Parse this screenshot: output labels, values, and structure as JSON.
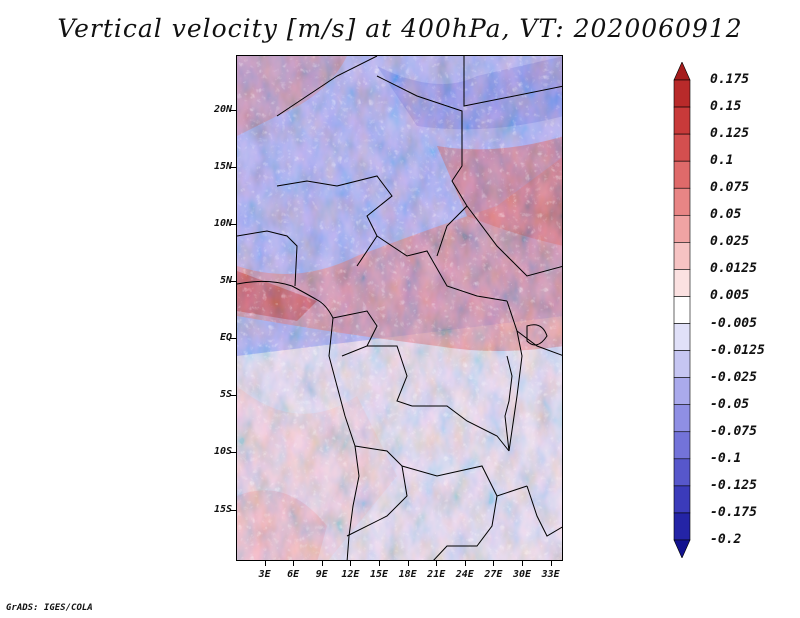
{
  "title": "Vertical velocity [m/s] at 400hPa, VT: 2020060912",
  "credit": "GrADS: IGES/COLA",
  "axes": {
    "lat_labels": [
      "20N",
      "15N",
      "10N",
      "5N",
      "EQ",
      "5S",
      "10S",
      "15S"
    ],
    "lat_values": [
      20,
      15,
      10,
      5,
      0,
      -5,
      -10,
      -15
    ],
    "lon_labels": [
      "3E",
      "6E",
      "9E",
      "12E",
      "15E",
      "18E",
      "21E",
      "24E",
      "27E",
      "30E",
      "33E"
    ],
    "lon_values": [
      3,
      6,
      9,
      12,
      15,
      18,
      21,
      24,
      27,
      30,
      33
    ],
    "lat_range": [
      -19.5,
      24.8
    ],
    "lon_range": [
      0,
      34.3
    ]
  },
  "colorbar": {
    "labels": [
      "0.175",
      "0.15",
      "0.125",
      "0.1",
      "0.075",
      "0.05",
      "0.025",
      "0.0125",
      "0.005",
      "-0.005",
      "-0.0125",
      "-0.025",
      "-0.05",
      "-0.075",
      "-0.1",
      "-0.125",
      "-0.175",
      "-0.2"
    ],
    "colors": [
      "#a51c1c",
      "#b82a2a",
      "#c83a3a",
      "#d44f4f",
      "#df6a6a",
      "#e88585",
      "#f0a3a3",
      "#f6c3c3",
      "#fbe1e1",
      "#ffffff",
      "#e0e0f8",
      "#c6c6f2",
      "#aaaaec",
      "#8f8fe4",
      "#7373d9",
      "#5757cb",
      "#3b3bba",
      "#2424a6",
      "#12128f"
    ]
  },
  "chart_data": {
    "type": "heatmap",
    "title": "Vertical velocity [m/s] at 400hPa, VT: 2020060912",
    "variable": "Vertical velocity",
    "units": "m/s",
    "level": "400hPa",
    "valid_time": "2020060912",
    "x_axis": "longitude (E)",
    "y_axis": "latitude",
    "region": "Central Africa",
    "color_levels": [
      0.175,
      0.15,
      0.125,
      0.1,
      0.075,
      0.05,
      0.025,
      0.0125,
      0.005,
      -0.005,
      -0.0125,
      -0.025,
      -0.05,
      -0.075,
      -0.1,
      -0.125,
      -0.175,
      -0.2
    ]
  }
}
